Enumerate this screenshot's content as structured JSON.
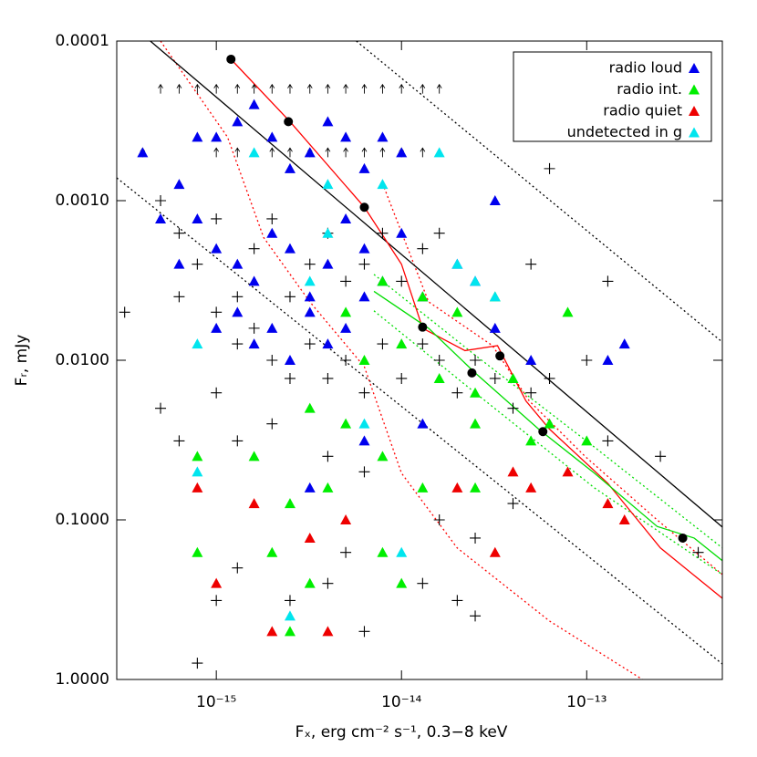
{
  "chart_data": {
    "type": "scatter",
    "xlabel": "Fₓ, erg cm⁻² s⁻¹, 0.3−8 keV",
    "ylabel": "Fᵣ, mJy",
    "xscale": "log",
    "yscale": "log",
    "yreverse": true,
    "xlim": [
      2.9e-16,
      5.4e-13
    ],
    "ylim": [
      0.0001,
      1
    ],
    "xticks": [
      {
        "value": 1e-15,
        "label": "10⁻¹⁵"
      },
      {
        "value": 1e-14,
        "label": "10⁻¹⁴"
      },
      {
        "value": 1e-13,
        "label": "10⁻¹³"
      }
    ],
    "yticks": [
      {
        "value": 0.0001,
        "label": "0.0001"
      },
      {
        "value": 0.001,
        "label": "0.0010"
      },
      {
        "value": 0.01,
        "label": "0.0100"
      },
      {
        "value": 0.1,
        "label": "0.1000"
      },
      {
        "value": 1,
        "label": "1.0000"
      }
    ],
    "legend": "upper right",
    "lines": [
      {
        "color": "#000000",
        "style": "dotted",
        "x": [
          5.7e-15,
          5.4e-13
        ],
        "values": [
          0.0001,
          0.0077
        ]
      },
      {
        "color": "#000000",
        "style": "dotted",
        "x": [
          2.9e-16,
          5.4e-13
        ],
        "values": [
          0.00072,
          0.8
        ]
      },
      {
        "color": "#ff0000",
        "style": "dotted",
        "x": [
          5e-16,
          1.15e-15,
          1.8e-15,
          3.2e-15,
          6.3e-15,
          1e-14,
          2e-14,
          6.3e-14,
          2e-13
        ],
        "values": [
          0.0001,
          0.0004,
          0.0017,
          0.0043,
          0.011,
          0.051,
          0.15,
          0.43,
          1
        ]
      },
      {
        "color": "#ff0000",
        "style": "dotted",
        "x": [
          7.9e-15,
          1.4e-14,
          3.1e-14,
          4.9e-14,
          9.8e-14,
          2.4e-13,
          5.4e-13
        ],
        "values": [
          0.00078,
          0.0043,
          0.0081,
          0.018,
          0.04,
          0.1,
          0.22
        ]
      },
      {
        "color": "#00dd00",
        "style": "dotted",
        "x": [
          7.1e-15,
          2.5e-14,
          1.1e-13,
          5.4e-13
        ],
        "values": [
          0.0029,
          0.0093,
          0.035,
          0.15
        ]
      },
      {
        "color": "#00dd00",
        "style": "dotted",
        "x": [
          7.1e-15,
          2.5e-14,
          1.1e-13,
          5.4e-13
        ],
        "values": [
          0.0049,
          0.016,
          0.063,
          0.22
        ]
      },
      {
        "color": "#000000",
        "style": "solid",
        "x": [
          4.4e-16,
          5.4e-13
        ],
        "values": [
          0.0001,
          0.111
        ]
      },
      {
        "color": "#ff0000",
        "style": "solid",
        "x": [
          1.2e-15,
          2.5e-15,
          6.3e-15,
          1e-14,
          1.3e-14,
          2.2e-14,
          3.3e-14,
          4.7e-14,
          6.3e-14,
          1.3e-13,
          2.5e-13,
          5.4e-13
        ],
        "values": [
          0.00013,
          0.00032,
          0.0011,
          0.0025,
          0.0063,
          0.0087,
          0.0081,
          0.018,
          0.027,
          0.059,
          0.15,
          0.31
        ]
      },
      {
        "color": "#00dd00",
        "style": "solid",
        "x": [
          7.1e-15,
          1.4e-14,
          2.5e-14,
          5.5e-14,
          1.1e-13,
          2.4e-13,
          3.8e-13,
          5.4e-13
        ],
        "values": [
          0.0037,
          0.0063,
          0.012,
          0.027,
          0.051,
          0.11,
          0.13,
          0.18
        ]
      }
    ],
    "series": [
      {
        "color": "#000000",
        "marker": "arrow-up",
        "x": [
          5e-16,
          6.3e-16,
          7.9e-16,
          1e-15,
          1.3e-15,
          1.6e-15,
          2e-15,
          2.5e-15,
          3.2e-15,
          4e-15,
          5e-15,
          6.3e-15,
          7.9e-15,
          1e-14,
          1.3e-14,
          1.6e-14,
          4e-16,
          1e-15,
          1.3e-15,
          2e-15,
          2.5e-15,
          3.2e-15,
          4e-15,
          5e-15,
          6.3e-15,
          7.9e-15,
          1e-14,
          1.3e-14
        ],
        "values": [
          0.0002,
          0.0002,
          0.0002,
          0.0002,
          0.0002,
          0.0002,
          0.0002,
          0.0002,
          0.0002,
          0.0002,
          0.0002,
          0.0002,
          0.0002,
          0.0002,
          0.0002,
          0.0002,
          0.0005,
          0.0005,
          0.0005,
          0.0005,
          0.0005,
          0.0005,
          0.0005,
          0.0005,
          0.0005,
          0.0005,
          0.0005,
          0.0005
        ]
      },
      {
        "color": "#000000",
        "marker": "plus",
        "x": [
          5e-16,
          6.3e-16,
          7.9e-16,
          1e-15,
          1.3e-15,
          1.6e-15,
          2e-15,
          2.5e-15,
          3.2e-15,
          4e-15,
          5e-15,
          6.3e-15,
          7.9e-15,
          1e-14,
          1.3e-14,
          1.6e-14,
          6.3e-16,
          1e-15,
          1.3e-15,
          1.6e-15,
          2e-15,
          2.5e-15,
          3.2e-15,
          4e-15,
          5e-15,
          6.3e-15,
          7.9e-15,
          1e-14,
          1.3e-14,
          1.6e-14,
          2e-14,
          2.5e-14,
          3.2e-14,
          4e-14,
          5e-14,
          6.3e-14,
          1.3e-13,
          2.5e-13,
          4e-13,
          1e-13,
          5e-14,
          6.3e-14,
          1.3e-13,
          3.2e-16,
          5e-16,
          1e-15,
          1.3e-15,
          2e-15,
          4e-15,
          6.3e-15,
          6.3e-16,
          1.3e-15,
          1e-15,
          2.5e-15,
          5e-15,
          6.3e-15,
          1.3e-14,
          2.5e-14,
          2e-14,
          2.5e-14,
          7.9e-16,
          4e-15,
          1.6e-14,
          4e-14
        ],
        "values": [
          0.001,
          0.0016,
          0.0025,
          0.0013,
          0.004,
          0.002,
          0.0013,
          0.004,
          0.0025,
          0.0016,
          0.0032,
          0.0025,
          0.0016,
          0.0032,
          0.002,
          0.0016,
          0.004,
          0.005,
          0.0079,
          0.0063,
          0.01,
          0.013,
          0.0079,
          0.013,
          0.01,
          0.016,
          0.0079,
          0.013,
          0.0079,
          0.01,
          0.016,
          0.01,
          0.013,
          0.02,
          0.016,
          0.013,
          0.032,
          0.04,
          0.16,
          0.01,
          0.0025,
          0.00063,
          0.0032,
          0.005,
          0.02,
          0.016,
          0.032,
          0.025,
          0.04,
          0.05,
          0.032,
          0.2,
          0.32,
          0.32,
          0.16,
          0.5,
          0.25,
          0.13,
          0.32,
          0.4,
          0.79,
          0.25,
          0.1,
          0.079
        ]
      },
      {
        "name": "radio loud",
        "color": "#0000ee",
        "marker": "triangle",
        "x": [
          4e-16,
          5e-16,
          7.9e-16,
          1e-15,
          1.3e-15,
          1.6e-15,
          2e-15,
          2.5e-15,
          3.2e-15,
          4e-15,
          5e-15,
          6.3e-15,
          7.9e-15,
          1e-14,
          7.9e-16,
          1e-15,
          1.3e-15,
          1.6e-15,
          2e-15,
          2.5e-15,
          3.2e-15,
          4e-15,
          5e-15,
          6.3e-15,
          7.9e-15,
          1e-14,
          1e-15,
          1.3e-15,
          1.6e-15,
          2e-15,
          2.5e-15,
          3.2e-15,
          4e-15,
          5e-15,
          6.3e-15,
          1.3e-14,
          2e-14,
          2.5e-14,
          3.2e-14,
          5e-14,
          1.3e-13,
          1.6e-13,
          1.3e-14,
          3.2e-15,
          6.3e-15,
          6.3e-16,
          3.2e-14,
          6.3e-16
        ],
        "values": [
          0.0005,
          0.0013,
          0.0004,
          0.0004,
          0.00032,
          0.00025,
          0.0004,
          0.00063,
          0.0005,
          0.00032,
          0.0004,
          0.00063,
          0.0004,
          0.0005,
          0.0013,
          0.002,
          0.0025,
          0.0032,
          0.0016,
          0.002,
          0.004,
          0.0025,
          0.0013,
          0.002,
          0.0032,
          0.0016,
          0.0063,
          0.005,
          0.0079,
          0.0063,
          0.01,
          0.005,
          0.0079,
          0.0063,
          0.004,
          0.004,
          0.0025,
          0.0032,
          0.0063,
          0.01,
          0.01,
          0.0079,
          0.025,
          0.063,
          0.032,
          0.0025,
          0.001,
          0.00079
        ]
      },
      {
        "name": "radio int.",
        "color": "#00ee00",
        "marker": "triangle",
        "x": [
          5e-15,
          7.9e-15,
          1.3e-14,
          2e-14,
          3.2e-14,
          6.3e-15,
          1e-14,
          1.6e-14,
          2.5e-14,
          4e-14,
          6.3e-14,
          1e-13,
          7.9e-14,
          3.2e-15,
          5e-15,
          7.9e-15,
          1.3e-14,
          2.5e-14,
          5e-14,
          7.9e-16,
          1.6e-15,
          2.5e-15,
          4e-15,
          7.9e-16,
          2e-15,
          3.2e-15,
          7.9e-15,
          1e-14,
          2.5e-15,
          2.5e-14
        ],
        "values": [
          0.005,
          0.0032,
          0.004,
          0.005,
          0.004,
          0.01,
          0.0079,
          0.013,
          0.016,
          0.013,
          0.025,
          0.032,
          0.005,
          0.02,
          0.025,
          0.04,
          0.063,
          0.025,
          0.032,
          0.04,
          0.04,
          0.079,
          0.063,
          0.16,
          0.16,
          0.25,
          0.16,
          0.25,
          0.5,
          0.063
        ]
      },
      {
        "name": "radio quiet",
        "color": "#ee0000",
        "marker": "triangle",
        "x": [
          7.9e-16,
          1.6e-15,
          3.2e-15,
          5e-15,
          1e-15,
          2e-15,
          4e-15,
          2e-14,
          4e-14,
          5e-14,
          3.2e-14,
          7.9e-14,
          1.3e-13,
          1.6e-13
        ],
        "values": [
          0.063,
          0.079,
          0.13,
          0.1,
          0.25,
          0.5,
          0.5,
          0.063,
          0.05,
          0.063,
          0.16,
          0.05,
          0.079,
          0.1
        ]
      },
      {
        "name": "undetected in g",
        "color": "#00e5ee",
        "marker": "triangle",
        "x": [
          7.9e-16,
          2.5e-15,
          1e-14,
          6.3e-15,
          3.2e-15,
          4e-15,
          7.9e-15,
          2e-14,
          2.5e-14,
          3.2e-14,
          7.9e-16,
          4e-15,
          1.6e-14,
          1.6e-15
        ],
        "values": [
          0.05,
          0.4,
          0.16,
          0.025,
          0.0032,
          0.0016,
          0.00079,
          0.0025,
          0.0032,
          0.004,
          0.0079,
          0.00079,
          0.0005,
          0.0005
        ]
      },
      {
        "color": "#000000",
        "marker": "circle",
        "x": [
          1.2e-15,
          2.45e-15,
          6.3e-15,
          1.3e-14,
          2.4e-14,
          3.4e-14,
          5.8e-14,
          3.3e-13
        ],
        "values": [
          0.00013,
          0.00032,
          0.0011,
          0.0062,
          0.012,
          0.0094,
          0.028,
          0.13
        ]
      }
    ]
  }
}
